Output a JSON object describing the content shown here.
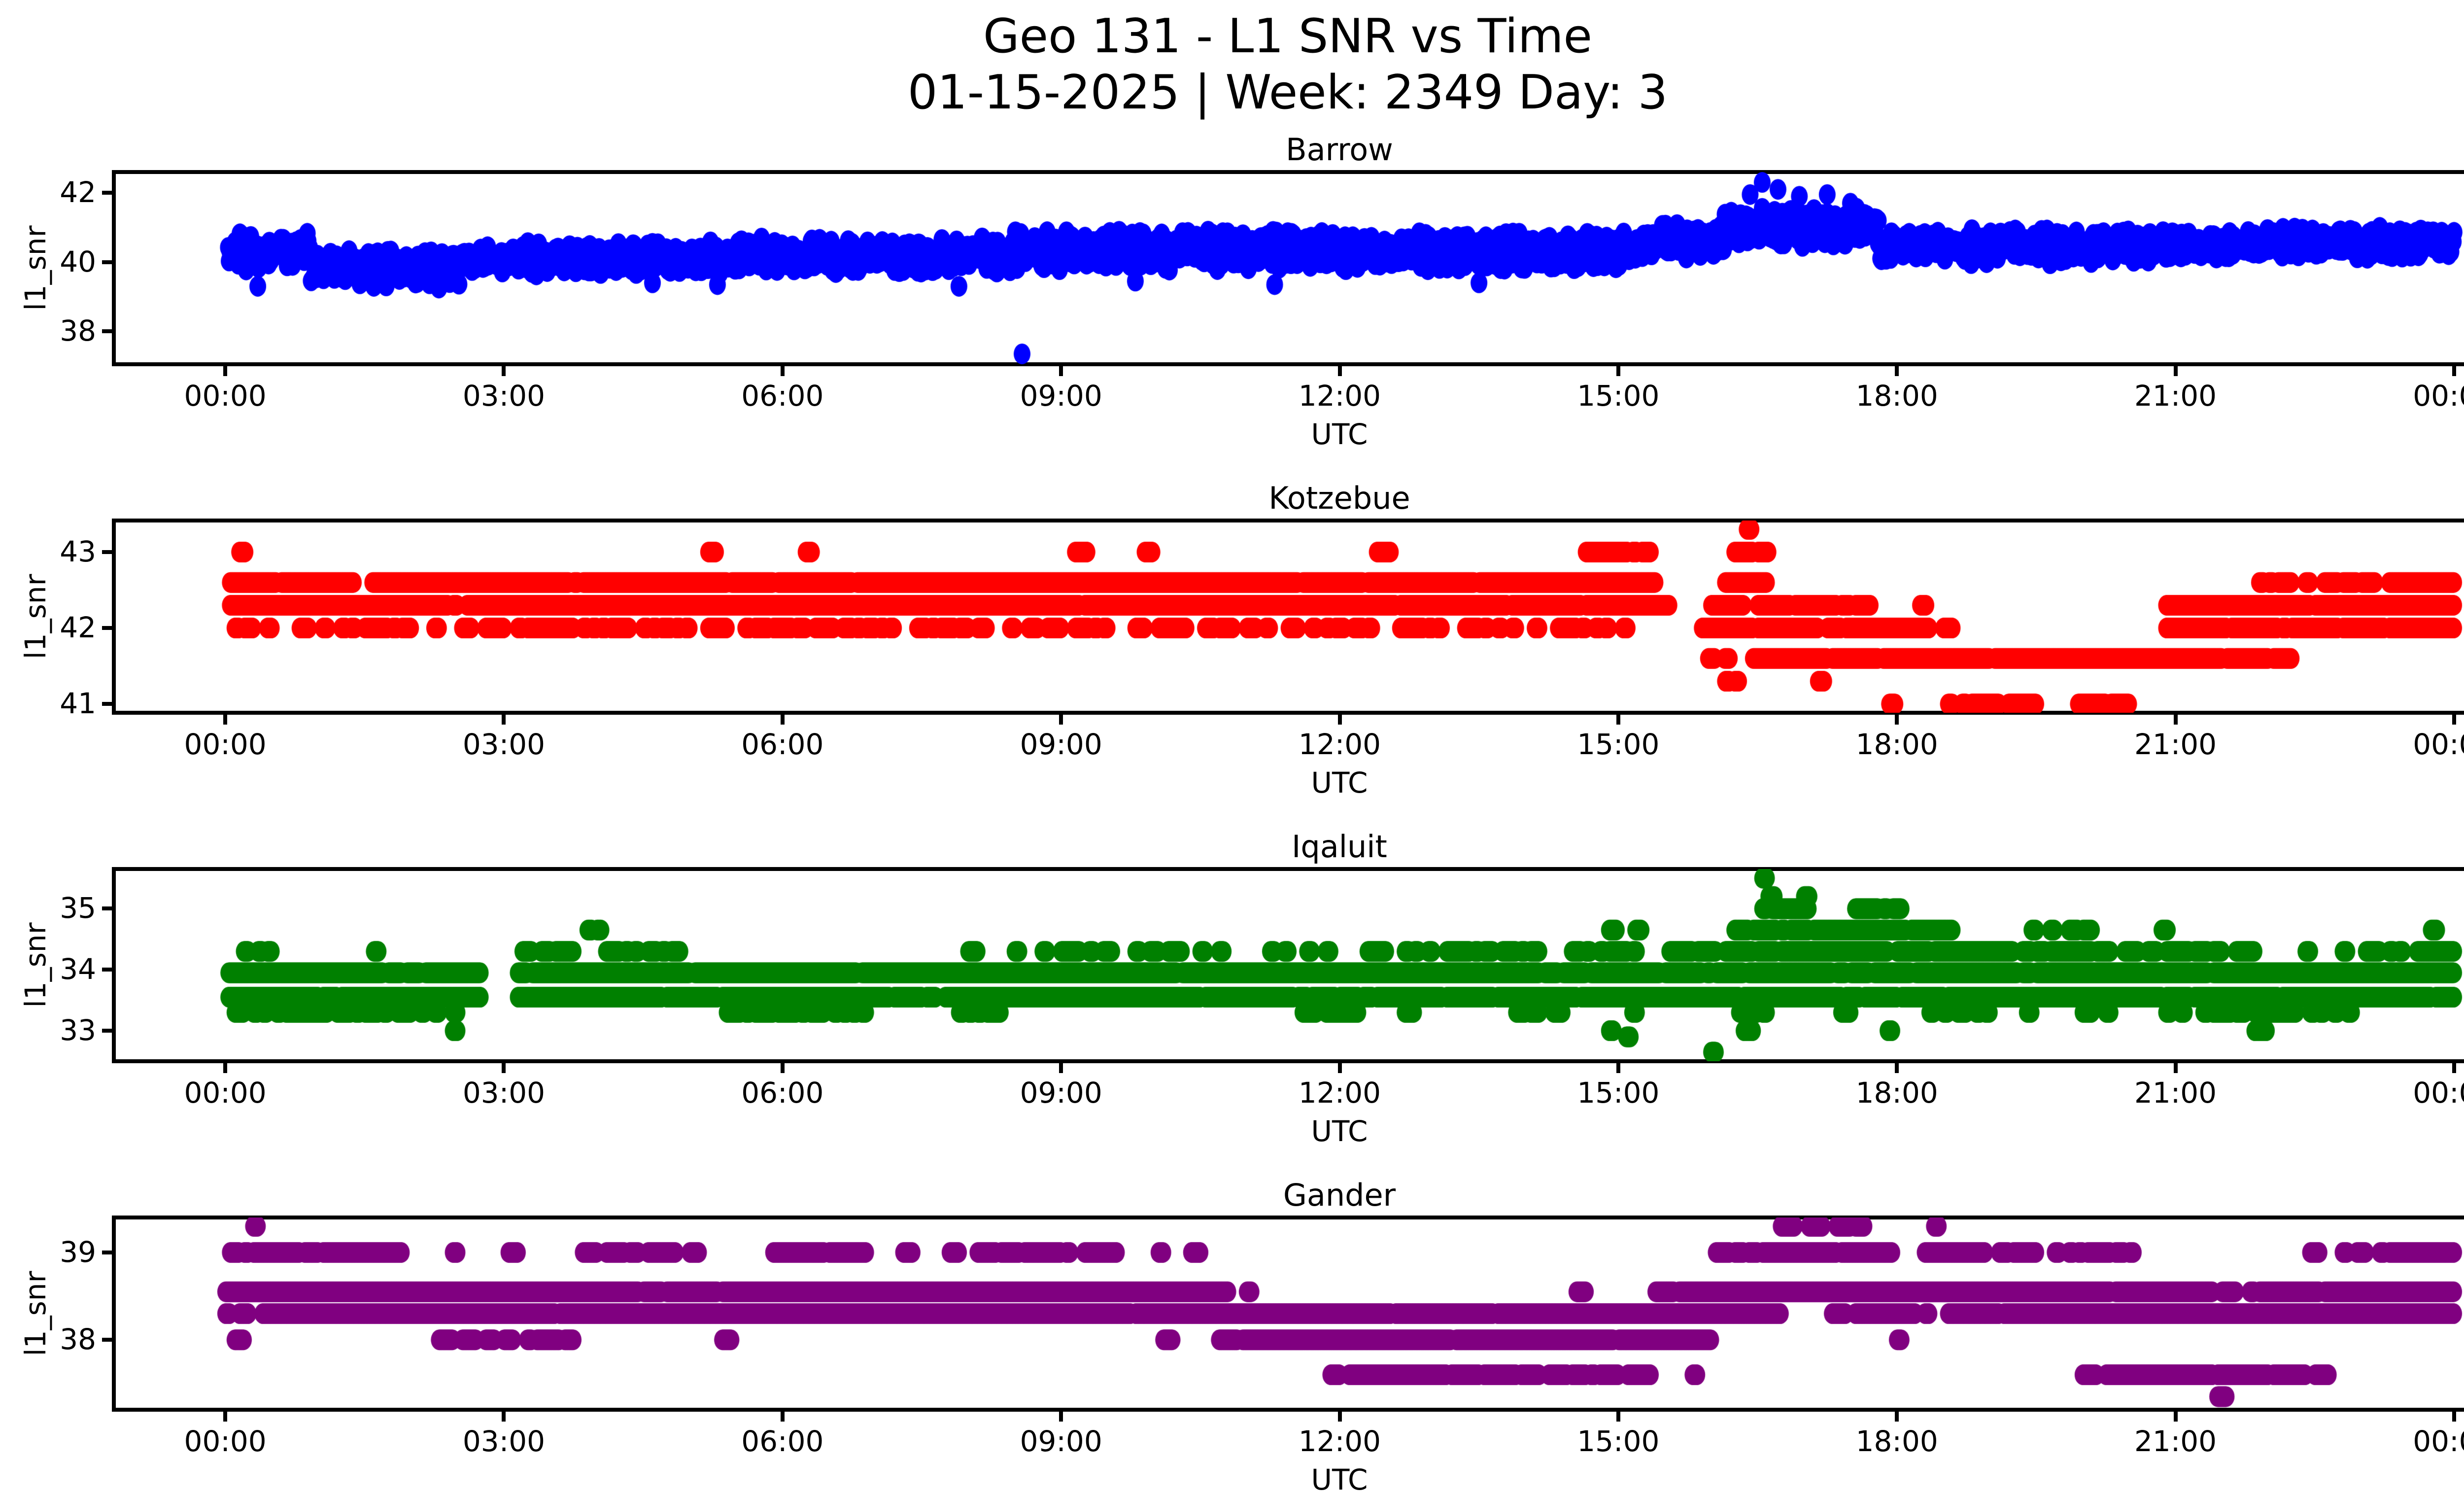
{
  "figure": {
    "suptitle_line1": "Geo 131 - L1 SNR vs Time",
    "suptitle_line2": "01-15-2025 | Week: 2349 Day: 3",
    "background": "#ffffff",
    "text_color": "#000000"
  },
  "chart_data": [
    {
      "type": "scatter",
      "title": "Barrow",
      "color": "#0000ff",
      "xlabel": "UTC",
      "ylabel": "l1_snr",
      "x_ticks": [
        "00:00",
        "03:00",
        "06:00",
        "09:00",
        "12:00",
        "15:00",
        "18:00",
        "21:00",
        "00:00"
      ],
      "x_tick_hours": [
        0,
        3,
        6,
        9,
        12,
        15,
        18,
        21,
        24
      ],
      "xlim": [
        -1.2,
        25.2
      ],
      "ylim": [
        37.05,
        42.6
      ],
      "y_ticks": [
        38,
        40,
        42
      ],
      "noisy_bands": [
        [
          0.03,
          0.92,
          40.3,
          0.45,
          1
        ],
        [
          0.92,
          2.55,
          39.85,
          0.48,
          1
        ],
        [
          2.55,
          5.5,
          40.1,
          0.42,
          1
        ],
        [
          5.5,
          8.5,
          40.2,
          0.45,
          1
        ],
        [
          8.5,
          12.0,
          40.35,
          0.5,
          1
        ],
        [
          12.0,
          15.2,
          40.3,
          0.5,
          1
        ],
        [
          15.2,
          16.15,
          40.6,
          0.45,
          1
        ],
        [
          16.15,
          17.8,
          41.0,
          0.5,
          1
        ],
        [
          17.8,
          20.8,
          40.45,
          0.45,
          1
        ],
        [
          20.8,
          24.0,
          40.55,
          0.38,
          1
        ]
      ],
      "outliers": [
        [
          8.58,
          37.35
        ],
        [
          16.42,
          41.95
        ],
        [
          16.55,
          42.3
        ],
        [
          16.72,
          42.1
        ],
        [
          16.95,
          41.9
        ],
        [
          17.25,
          41.95
        ],
        [
          17.5,
          41.7
        ],
        [
          0.35,
          39.3
        ],
        [
          1.6,
          39.3
        ],
        [
          2.3,
          39.25
        ],
        [
          4.6,
          39.4
        ],
        [
          5.3,
          39.35
        ],
        [
          7.9,
          39.3
        ],
        [
          9.8,
          39.45
        ],
        [
          11.3,
          39.35
        ],
        [
          13.5,
          39.4
        ]
      ]
    },
    {
      "type": "scatter",
      "title": "Kotzebue",
      "color": "#ff0000",
      "xlabel": "UTC",
      "ylabel": "l1_snr",
      "x_ticks": [
        "00:00",
        "03:00",
        "06:00",
        "09:00",
        "12:00",
        "15:00",
        "18:00",
        "21:00",
        "00:00"
      ],
      "x_tick_hours": [
        0,
        3,
        6,
        9,
        12,
        15,
        18,
        21,
        24
      ],
      "xlim": [
        -1.2,
        25.2
      ],
      "ylim": [
        40.885,
        43.415
      ],
      "y_ticks": [
        41,
        42,
        43
      ],
      "bands": [
        {
          "level": 43.3,
          "segments": [
            [
              16.38,
              16.43,
              1
            ]
          ]
        },
        {
          "level": 43.0,
          "segments": [
            [
              0.15,
              0.22,
              1
            ],
            [
              5.2,
              5.28,
              1
            ],
            [
              6.25,
              6.32,
              1
            ],
            [
              9.05,
              9.28,
              0.6
            ],
            [
              9.9,
              9.98,
              1
            ],
            [
              12.4,
              12.55,
              0.7
            ],
            [
              14.65,
              15.35,
              0.75
            ],
            [
              16.2,
              16.62,
              0.85
            ]
          ]
        },
        {
          "level": 42.6,
          "segments": [
            [
              0.05,
              1.38,
              0.97
            ],
            [
              1.58,
              15.45,
              0.97
            ],
            [
              16.15,
              16.6,
              0.85
            ],
            [
              21.9,
              22.5,
              0.65
            ],
            [
              22.6,
              23.15,
              0.75
            ],
            [
              23.3,
              24.0,
              0.8
            ]
          ]
        },
        {
          "level": 42.3,
          "segments": [
            [
              0.05,
              15.55,
              0.97
            ],
            [
              15.9,
              16.35,
              0.7
            ],
            [
              16.5,
              17.72,
              0.85
            ],
            [
              18.25,
              18.32,
              1
            ],
            [
              20.9,
              24.0,
              0.97
            ]
          ]
        },
        {
          "level": 42.0,
          "segments": [
            [
              0.1,
              15.1,
              0.5
            ],
            [
              15.8,
              18.35,
              0.95
            ],
            [
              18.5,
              18.6,
              0.7
            ],
            [
              20.9,
              24.0,
              0.95
            ]
          ]
        },
        {
          "level": 41.6,
          "segments": [
            [
              15.97,
              16.04,
              1
            ],
            [
              16.14,
              16.2,
              1
            ],
            [
              16.45,
              22.25,
              0.97
            ]
          ]
        },
        {
          "level": 41.3,
          "segments": [
            [
              16.0,
              16.3,
              0.3
            ],
            [
              17.15,
              17.22,
              1
            ]
          ]
        },
        {
          "level": 41.0,
          "segments": [
            [
              17.92,
              17.98,
              1
            ],
            [
              18.35,
              18.45,
              0.7
            ],
            [
              18.55,
              19.1,
              0.7
            ],
            [
              19.2,
              19.5,
              0.7
            ],
            [
              19.9,
              20.5,
              0.55
            ]
          ]
        }
      ],
      "outliers": []
    },
    {
      "type": "scatter",
      "title": "Iqaluit",
      "color": "#008000",
      "xlabel": "UTC",
      "ylabel": "l1_snr",
      "x_ticks": [
        "00:00",
        "03:00",
        "06:00",
        "09:00",
        "12:00",
        "15:00",
        "18:00",
        "21:00",
        "00:00"
      ],
      "x_tick_hours": [
        0,
        3,
        6,
        9,
        12,
        15,
        18,
        21,
        24
      ],
      "xlim": [
        -1.2,
        25.2
      ],
      "ylim": [
        32.5,
        35.65
      ],
      "y_ticks": [
        33,
        34,
        35
      ],
      "bands": [
        {
          "level": 35.5,
          "segments": [
            [
              16.55,
              16.6,
              1
            ]
          ]
        },
        {
          "level": 35.2,
          "segments": [
            [
              16.62,
              16.68,
              1
            ],
            [
              17.0,
              17.06,
              1
            ]
          ]
        },
        {
          "level": 35.0,
          "segments": [
            [
              16.55,
              17.05,
              0.75
            ],
            [
              17.55,
              18.05,
              0.7
            ]
          ]
        },
        {
          "level": 34.65,
          "segments": [
            [
              3.9,
              4.15,
              0.5
            ],
            [
              14.9,
              14.98,
              1
            ],
            [
              15.18,
              15.25,
              1
            ],
            [
              16.25,
              18.6,
              0.85
            ],
            [
              19.45,
              19.5,
              1
            ],
            [
              19.65,
              19.7,
              1
            ],
            [
              19.85,
              20.1,
              0.6
            ],
            [
              20.85,
              20.92,
              1
            ],
            [
              23.75,
              23.82,
              1
            ]
          ]
        },
        {
          "level": 34.3,
          "segments": [
            [
              0.1,
              0.6,
              0.4
            ],
            [
              1.0,
              1.65,
              0.3
            ],
            [
              3.2,
              4.9,
              0.55
            ],
            [
              7.9,
              12.1,
              0.35
            ],
            [
              12.3,
              16.25,
              0.6
            ],
            [
              16.25,
              18.7,
              0.9
            ],
            [
              18.7,
              21.6,
              0.75
            ],
            [
              21.65,
              21.95,
              0.5
            ],
            [
              22.4,
              22.45,
              1
            ],
            [
              22.8,
              22.85,
              1
            ],
            [
              23.0,
              23.2,
              0.5
            ],
            [
              23.3,
              23.45,
              0.6
            ],
            [
              23.6,
              24.0,
              0.9
            ]
          ]
        },
        {
          "level": 33.95,
          "segments": [
            [
              0.03,
              2.75,
              0.97
            ],
            [
              3.15,
              24.0,
              0.97
            ]
          ]
        },
        {
          "level": 33.55,
          "segments": [
            [
              0.03,
              2.75,
              0.97
            ],
            [
              3.15,
              24.0,
              0.95
            ]
          ]
        },
        {
          "level": 33.3,
          "segments": [
            [
              0.08,
              2.7,
              0.55
            ],
            [
              4.4,
              4.55,
              0.6
            ],
            [
              5.4,
              6.9,
              0.65
            ],
            [
              7.8,
              8.4,
              0.6
            ],
            [
              11.6,
              12.2,
              0.6
            ],
            [
              12.7,
              12.8,
              0.5
            ],
            [
              13.9,
              14.5,
              0.5
            ],
            [
              15.1,
              15.3,
              0.4
            ],
            [
              16.3,
              16.6,
              0.5
            ],
            [
              17.4,
              17.5,
              0.5
            ],
            [
              18.3,
              19.0,
              0.5
            ],
            [
              19.4,
              19.5,
              0.6
            ],
            [
              20.0,
              20.3,
              0.5
            ],
            [
              20.9,
              21.1,
              0.5
            ],
            [
              21.3,
              22.6,
              0.7
            ],
            [
              22.7,
              22.9,
              0.5
            ]
          ]
        },
        {
          "level": 33.0,
          "segments": [
            [
              2.4,
              2.5,
              0.6
            ],
            [
              14.9,
              14.95,
              1
            ],
            [
              16.35,
              16.45,
              0.8
            ],
            [
              17.9,
              17.95,
              1
            ],
            [
              21.85,
              21.98,
              1
            ]
          ]
        },
        {
          "level": 32.9,
          "segments": [
            [
              15.08,
              15.13,
              1
            ]
          ]
        },
        {
          "level": 32.65,
          "segments": [
            [
              16.0,
              16.05,
              1
            ]
          ]
        }
      ],
      "outliers": []
    },
    {
      "type": "scatter",
      "title": "Gander",
      "color": "#800080",
      "xlabel": "UTC",
      "ylabel": "l1_snr",
      "x_ticks": [
        "00:00",
        "03:00",
        "06:00",
        "09:00",
        "12:00",
        "15:00",
        "18:00",
        "21:00",
        "00:00"
      ],
      "x_tick_hours": [
        0,
        3,
        6,
        9,
        12,
        15,
        18,
        21,
        24
      ],
      "xlim": [
        -1.2,
        25.2
      ],
      "ylim": [
        37.2,
        39.4
      ],
      "y_ticks": [
        38,
        39
      ],
      "bands": [
        {
          "level": 39.3,
          "segments": [
            [
              0.3,
              0.35,
              1
            ],
            [
              16.75,
              17.2,
              0.75
            ],
            [
              17.35,
              17.7,
              0.75
            ],
            [
              18.4,
              18.45,
              1
            ]
          ]
        },
        {
          "level": 39.0,
          "segments": [
            [
              0.05,
              1.9,
              0.85
            ],
            [
              2.45,
              2.55,
              0.7
            ],
            [
              3.0,
              3.15,
              0.6
            ],
            [
              3.8,
              4.85,
              0.8
            ],
            [
              5.0,
              5.1,
              0.6
            ],
            [
              5.9,
              6.9,
              0.8
            ],
            [
              7.3,
              7.45,
              0.6
            ],
            [
              7.8,
              7.9,
              0.6
            ],
            [
              8.1,
              9.7,
              0.85
            ],
            [
              10.05,
              10.15,
              0.7
            ],
            [
              10.4,
              10.5,
              0.7
            ],
            [
              16.05,
              17.95,
              0.95
            ],
            [
              18.3,
              19.55,
              0.85
            ],
            [
              19.7,
              20.55,
              0.5
            ],
            [
              22.45,
              22.55,
              0.7
            ],
            [
              22.8,
              23.05,
              0.7
            ],
            [
              23.2,
              24.0,
              0.8
            ]
          ]
        },
        {
          "level": 38.55,
          "segments": [
            [
              0.0,
              10.8,
              0.98
            ],
            [
              11.0,
              11.1,
              0.7
            ],
            [
              14.55,
              14.65,
              0.7
            ],
            [
              15.4,
              15.6,
              0.7
            ],
            [
              15.65,
              21.4,
              0.98
            ],
            [
              21.5,
              21.85,
              0.5
            ],
            [
              21.9,
              24.0,
              0.97
            ]
          ]
        },
        {
          "level": 38.3,
          "segments": [
            [
              0.0,
              0.25,
              0.6
            ],
            [
              0.4,
              16.75,
              0.98
            ],
            [
              17.3,
              17.45,
              0.6
            ],
            [
              17.55,
              18.2,
              0.9
            ],
            [
              18.3,
              18.35,
              1
            ],
            [
              18.55,
              24.0,
              0.98
            ]
          ]
        },
        {
          "level": 38.0,
          "segments": [
            [
              0.1,
              0.2,
              0.7
            ],
            [
              2.25,
              2.9,
              0.55
            ],
            [
              3.0,
              3.75,
              0.55
            ],
            [
              5.3,
              5.5,
              0.5
            ],
            [
              10.1,
              10.35,
              0.6
            ],
            [
              10.65,
              16.0,
              0.97
            ],
            [
              18.0,
              18.05,
              1
            ]
          ]
        },
        {
          "level": 37.6,
          "segments": [
            [
              11.9,
              12.0,
              0.8
            ],
            [
              12.1,
              14.15,
              0.9
            ],
            [
              14.25,
              15.0,
              0.85
            ],
            [
              15.1,
              15.35,
              0.8
            ],
            [
              15.8,
              15.85,
              1
            ],
            [
              20.0,
              20.15,
              0.7
            ],
            [
              20.25,
              22.4,
              0.9
            ],
            [
              22.5,
              22.65,
              0.7
            ]
          ]
        },
        {
          "level": 37.35,
          "segments": [
            [
              21.45,
              21.55,
              1
            ]
          ]
        }
      ],
      "outliers": []
    }
  ]
}
